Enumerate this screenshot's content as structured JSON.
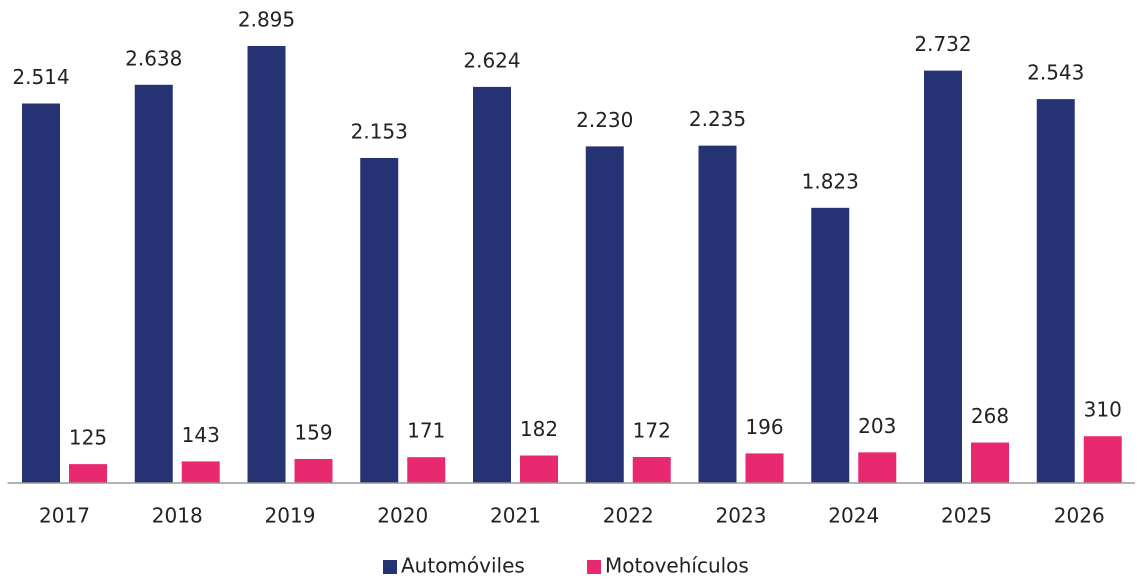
{
  "chart_data": {
    "type": "bar",
    "categories": [
      "2017",
      "2018",
      "2019",
      "2020",
      "2021",
      "2022",
      "2023",
      "2024",
      "2025",
      "2026"
    ],
    "series": [
      {
        "name": "Automóviles",
        "color": "#253374",
        "values": [
          2514,
          2638,
          2895,
          2153,
          2624,
          2230,
          2235,
          1823,
          2732,
          2543
        ],
        "value_labels": [
          "2.514",
          "2.638",
          "2.895",
          "2.153",
          "2.624",
          "2.230",
          "2.235",
          "1.823",
          "2.732",
          "2.543"
        ]
      },
      {
        "name": "Motovehículos",
        "color": "#e8286f",
        "values": [
          125,
          143,
          159,
          171,
          182,
          172,
          196,
          203,
          268,
          310
        ]
      }
    ]
  }
}
